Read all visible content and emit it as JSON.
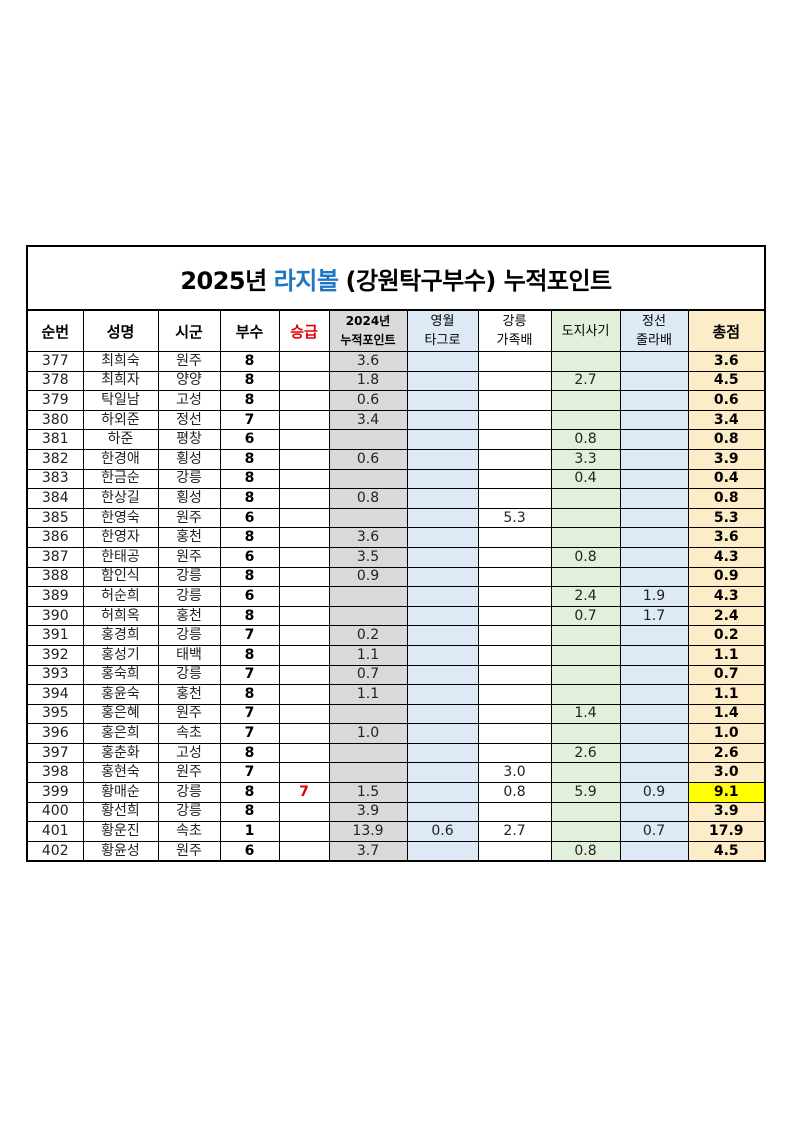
{
  "title": {
    "prefix": "2025년",
    "highlight": "라지볼",
    "suffix": "(강원탁구부수) 누적포인트"
  },
  "colors": {
    "title_accent": "#1f77c4",
    "promotion": "#e00000",
    "col_2024": "#d9d9d9",
    "col_blue": "#dde9f5",
    "col_green": "#e2efda",
    "col_total": "#fdecc8",
    "highlight": "#ffff00"
  },
  "headers": {
    "no": "순번",
    "name": "성명",
    "city": "시군",
    "div": "부수",
    "promo": "승급",
    "pts2024_1": "2024년",
    "pts2024_2": "누적포인트",
    "yw_1": "영월",
    "yw_2": "타그로",
    "gn_1": "강릉",
    "gn_2": "가족배",
    "doji": "도지사기",
    "js_1": "정선",
    "js_2": "줄라배",
    "total": "총점"
  },
  "rows": [
    [
      "377",
      "최희숙",
      "원주",
      "8",
      "",
      "3.6",
      "",
      "",
      "",
      "",
      "3.6"
    ],
    [
      "378",
      "최희자",
      "양양",
      "8",
      "",
      "1.8",
      "",
      "",
      "2.7",
      "",
      "4.5"
    ],
    [
      "379",
      "탁일남",
      "고성",
      "8",
      "",
      "0.6",
      "",
      "",
      "",
      "",
      "0.6"
    ],
    [
      "380",
      "하외준",
      "정선",
      "7",
      "",
      "3.4",
      "",
      "",
      "",
      "",
      "3.4"
    ],
    [
      "381",
      "하준",
      "평창",
      "6",
      "",
      "",
      "",
      "",
      "0.8",
      "",
      "0.8"
    ],
    [
      "382",
      "한경애",
      "횡성",
      "8",
      "",
      "0.6",
      "",
      "",
      "3.3",
      "",
      "3.9"
    ],
    [
      "383",
      "한금순",
      "강릉",
      "8",
      "",
      "",
      "",
      "",
      "0.4",
      "",
      "0.4"
    ],
    [
      "384",
      "한상길",
      "횡성",
      "8",
      "",
      "0.8",
      "",
      "",
      "",
      "",
      "0.8"
    ],
    [
      "385",
      "한영숙",
      "원주",
      "6",
      "",
      "",
      "",
      "5.3",
      "",
      "",
      "5.3"
    ],
    [
      "386",
      "한영자",
      "홍천",
      "8",
      "",
      "3.6",
      "",
      "",
      "",
      "",
      "3.6"
    ],
    [
      "387",
      "한태공",
      "원주",
      "6",
      "",
      "3.5",
      "",
      "",
      "0.8",
      "",
      "4.3"
    ],
    [
      "388",
      "함인식",
      "강릉",
      "8",
      "",
      "0.9",
      "",
      "",
      "",
      "",
      "0.9"
    ],
    [
      "389",
      "허순희",
      "강릉",
      "6",
      "",
      "",
      "",
      "",
      "2.4",
      "1.9",
      "4.3"
    ],
    [
      "390",
      "허희옥",
      "홍천",
      "8",
      "",
      "",
      "",
      "",
      "0.7",
      "1.7",
      "2.4"
    ],
    [
      "391",
      "홍경희",
      "강릉",
      "7",
      "",
      "0.2",
      "",
      "",
      "",
      "",
      "0.2"
    ],
    [
      "392",
      "홍성기",
      "태백",
      "8",
      "",
      "1.1",
      "",
      "",
      "",
      "",
      "1.1"
    ],
    [
      "393",
      "홍숙희",
      "강릉",
      "7",
      "",
      "0.7",
      "",
      "",
      "",
      "",
      "0.7"
    ],
    [
      "394",
      "홍윤숙",
      "홍천",
      "8",
      "",
      "1.1",
      "",
      "",
      "",
      "",
      "1.1"
    ],
    [
      "395",
      "홍은혜",
      "원주",
      "7",
      "",
      "",
      "",
      "",
      "1.4",
      "",
      "1.4"
    ],
    [
      "396",
      "홍은희",
      "속초",
      "7",
      "",
      "1.0",
      "",
      "",
      "",
      "",
      "1.0"
    ],
    [
      "397",
      "홍춘화",
      "고성",
      "8",
      "",
      "",
      "",
      "",
      "2.6",
      "",
      "2.6"
    ],
    [
      "398",
      "홍현숙",
      "원주",
      "7",
      "",
      "",
      "",
      "3.0",
      "",
      "",
      "3.0"
    ],
    [
      "399",
      "황매순",
      "강릉",
      "8",
      "7",
      "1.5",
      "",
      "0.8",
      "5.9",
      "0.9",
      "9.1"
    ],
    [
      "400",
      "황선희",
      "강릉",
      "8",
      "",
      "3.9",
      "",
      "",
      "",
      "",
      "3.9"
    ],
    [
      "401",
      "황운진",
      "속초",
      "1",
      "",
      "13.9",
      "0.6",
      "2.7",
      "",
      "0.7",
      "17.9"
    ],
    [
      "402",
      "황윤성",
      "원주",
      "6",
      "",
      "3.7",
      "",
      "",
      "0.8",
      "",
      "4.5"
    ]
  ],
  "highlighted_total_row": "399"
}
